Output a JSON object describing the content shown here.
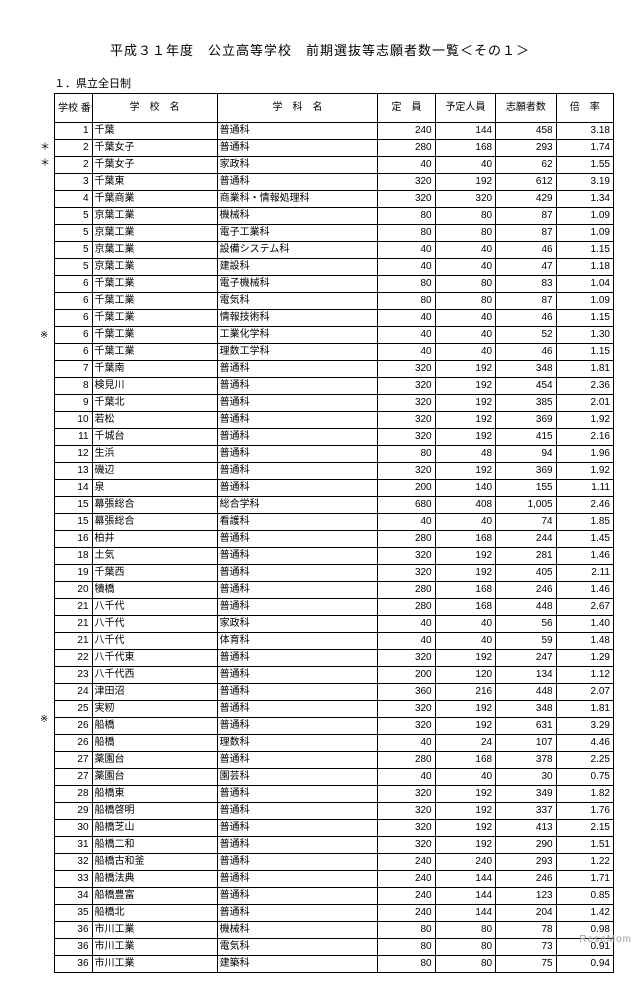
{
  "title": "平成３１年度　公立高等学校　前期選抜等志願者数一覧＜その１＞",
  "subtitle": "１．県立全日制",
  "headers": {
    "num": "学校\n番号",
    "school": "学　校　名",
    "dept": "学　科　名",
    "cap": "定　員",
    "plan": "予定人員",
    "app": "志願者数",
    "rate": "倍　率"
  },
  "marks": [
    {
      "row": 1,
      "symbol": "＊"
    },
    {
      "row": 2,
      "symbol": "＊"
    },
    {
      "row": 13,
      "symbol": "※"
    },
    {
      "row": 37,
      "symbol": "※"
    }
  ],
  "rows": [
    {
      "num": "1",
      "school": "千葉",
      "dept": "普通科",
      "cap": "240",
      "plan": "144",
      "app": "458",
      "rate": "3.18"
    },
    {
      "num": "2",
      "school": "千葉女子",
      "dept": "普通科",
      "cap": "280",
      "plan": "168",
      "app": "293",
      "rate": "1.74"
    },
    {
      "num": "2",
      "school": "千葉女子",
      "dept": "家政科",
      "cap": "40",
      "plan": "40",
      "app": "62",
      "rate": "1.55"
    },
    {
      "num": "3",
      "school": "千葉東",
      "dept": "普通科",
      "cap": "320",
      "plan": "192",
      "app": "612",
      "rate": "3.19"
    },
    {
      "num": "4",
      "school": "千葉商業",
      "dept": "商業科・情報処理科",
      "cap": "320",
      "plan": "320",
      "app": "429",
      "rate": "1.34"
    },
    {
      "num": "5",
      "school": "京葉工業",
      "dept": "機械科",
      "cap": "80",
      "plan": "80",
      "app": "87",
      "rate": "1.09"
    },
    {
      "num": "5",
      "school": "京葉工業",
      "dept": "電子工業科",
      "cap": "80",
      "plan": "80",
      "app": "87",
      "rate": "1.09"
    },
    {
      "num": "5",
      "school": "京葉工業",
      "dept": "設備システム科",
      "cap": "40",
      "plan": "40",
      "app": "46",
      "rate": "1.15"
    },
    {
      "num": "5",
      "school": "京葉工業",
      "dept": "建設科",
      "cap": "40",
      "plan": "40",
      "app": "47",
      "rate": "1.18"
    },
    {
      "num": "6",
      "school": "千葉工業",
      "dept": "電子機械科",
      "cap": "80",
      "plan": "80",
      "app": "83",
      "rate": "1.04"
    },
    {
      "num": "6",
      "school": "千葉工業",
      "dept": "電気科",
      "cap": "80",
      "plan": "80",
      "app": "87",
      "rate": "1.09"
    },
    {
      "num": "6",
      "school": "千葉工業",
      "dept": "情報技術科",
      "cap": "40",
      "plan": "40",
      "app": "46",
      "rate": "1.15"
    },
    {
      "num": "6",
      "school": "千葉工業",
      "dept": "工業化学科",
      "cap": "40",
      "plan": "40",
      "app": "52",
      "rate": "1.30"
    },
    {
      "num": "6",
      "school": "千葉工業",
      "dept": "理数工学科",
      "cap": "40",
      "plan": "40",
      "app": "46",
      "rate": "1.15"
    },
    {
      "num": "7",
      "school": "千葉南",
      "dept": "普通科",
      "cap": "320",
      "plan": "192",
      "app": "348",
      "rate": "1.81"
    },
    {
      "num": "8",
      "school": "検見川",
      "dept": "普通科",
      "cap": "320",
      "plan": "192",
      "app": "454",
      "rate": "2.36"
    },
    {
      "num": "9",
      "school": "千葉北",
      "dept": "普通科",
      "cap": "320",
      "plan": "192",
      "app": "385",
      "rate": "2.01"
    },
    {
      "num": "10",
      "school": "若松",
      "dept": "普通科",
      "cap": "320",
      "plan": "192",
      "app": "369",
      "rate": "1.92"
    },
    {
      "num": "11",
      "school": "千城台",
      "dept": "普通科",
      "cap": "320",
      "plan": "192",
      "app": "415",
      "rate": "2.16"
    },
    {
      "num": "12",
      "school": "生浜",
      "dept": "普通科",
      "cap": "80",
      "plan": "48",
      "app": "94",
      "rate": "1.96"
    },
    {
      "num": "13",
      "school": "磯辺",
      "dept": "普通科",
      "cap": "320",
      "plan": "192",
      "app": "369",
      "rate": "1.92"
    },
    {
      "num": "14",
      "school": "泉",
      "dept": "普通科",
      "cap": "200",
      "plan": "140",
      "app": "155",
      "rate": "1.11"
    },
    {
      "num": "15",
      "school": "幕張総合",
      "dept": "総合学科",
      "cap": "680",
      "plan": "408",
      "app": "1,005",
      "rate": "2.46"
    },
    {
      "num": "15",
      "school": "幕張総合",
      "dept": "看護科",
      "cap": "40",
      "plan": "40",
      "app": "74",
      "rate": "1.85"
    },
    {
      "num": "16",
      "school": "柏井",
      "dept": "普通科",
      "cap": "280",
      "plan": "168",
      "app": "244",
      "rate": "1.45"
    },
    {
      "num": "18",
      "school": "土気",
      "dept": "普通科",
      "cap": "320",
      "plan": "192",
      "app": "281",
      "rate": "1.46"
    },
    {
      "num": "19",
      "school": "千葉西",
      "dept": "普通科",
      "cap": "320",
      "plan": "192",
      "app": "405",
      "rate": "2.11"
    },
    {
      "num": "20",
      "school": "犢橋",
      "dept": "普通科",
      "cap": "280",
      "plan": "168",
      "app": "246",
      "rate": "1.46"
    },
    {
      "num": "21",
      "school": "八千代",
      "dept": "普通科",
      "cap": "280",
      "plan": "168",
      "app": "448",
      "rate": "2.67"
    },
    {
      "num": "21",
      "school": "八千代",
      "dept": "家政科",
      "cap": "40",
      "plan": "40",
      "app": "56",
      "rate": "1.40"
    },
    {
      "num": "21",
      "school": "八千代",
      "dept": "体育科",
      "cap": "40",
      "plan": "40",
      "app": "59",
      "rate": "1.48"
    },
    {
      "num": "22",
      "school": "八千代東",
      "dept": "普通科",
      "cap": "320",
      "plan": "192",
      "app": "247",
      "rate": "1.29"
    },
    {
      "num": "23",
      "school": "八千代西",
      "dept": "普通科",
      "cap": "200",
      "plan": "120",
      "app": "134",
      "rate": "1.12"
    },
    {
      "num": "24",
      "school": "津田沼",
      "dept": "普通科",
      "cap": "360",
      "plan": "216",
      "app": "448",
      "rate": "2.07"
    },
    {
      "num": "25",
      "school": "実籾",
      "dept": "普通科",
      "cap": "320",
      "plan": "192",
      "app": "348",
      "rate": "1.81"
    },
    {
      "num": "26",
      "school": "船橋",
      "dept": "普通科",
      "cap": "320",
      "plan": "192",
      "app": "631",
      "rate": "3.29"
    },
    {
      "num": "26",
      "school": "船橋",
      "dept": "理数科",
      "cap": "40",
      "plan": "24",
      "app": "107",
      "rate": "4.46"
    },
    {
      "num": "27",
      "school": "薬園台",
      "dept": "普通科",
      "cap": "280",
      "plan": "168",
      "app": "378",
      "rate": "2.25"
    },
    {
      "num": "27",
      "school": "薬園台",
      "dept": "園芸科",
      "cap": "40",
      "plan": "40",
      "app": "30",
      "rate": "0.75"
    },
    {
      "num": "28",
      "school": "船橋東",
      "dept": "普通科",
      "cap": "320",
      "plan": "192",
      "app": "349",
      "rate": "1.82"
    },
    {
      "num": "29",
      "school": "船橋啓明",
      "dept": "普通科",
      "cap": "320",
      "plan": "192",
      "app": "337",
      "rate": "1.76"
    },
    {
      "num": "30",
      "school": "船橋芝山",
      "dept": "普通科",
      "cap": "320",
      "plan": "192",
      "app": "413",
      "rate": "2.15"
    },
    {
      "num": "31",
      "school": "船橋二和",
      "dept": "普通科",
      "cap": "320",
      "plan": "192",
      "app": "290",
      "rate": "1.51"
    },
    {
      "num": "32",
      "school": "船橋古和釜",
      "dept": "普通科",
      "cap": "240",
      "plan": "240",
      "app": "293",
      "rate": "1.22"
    },
    {
      "num": "33",
      "school": "船橋法典",
      "dept": "普通科",
      "cap": "240",
      "plan": "144",
      "app": "246",
      "rate": "1.71"
    },
    {
      "num": "34",
      "school": "船橋豊富",
      "dept": "普通科",
      "cap": "240",
      "plan": "144",
      "app": "123",
      "rate": "0.85"
    },
    {
      "num": "35",
      "school": "船橋北",
      "dept": "普通科",
      "cap": "240",
      "plan": "144",
      "app": "204",
      "rate": "1.42"
    },
    {
      "num": "36",
      "school": "市川工業",
      "dept": "機械科",
      "cap": "80",
      "plan": "80",
      "app": "78",
      "rate": "0.98"
    },
    {
      "num": "36",
      "school": "市川工業",
      "dept": "電気科",
      "cap": "80",
      "plan": "80",
      "app": "73",
      "rate": "0.91"
    },
    {
      "num": "36",
      "school": "市川工業",
      "dept": "建築科",
      "cap": "80",
      "plan": "80",
      "app": "75",
      "rate": "0.94"
    }
  ],
  "logo": "ReseMom"
}
